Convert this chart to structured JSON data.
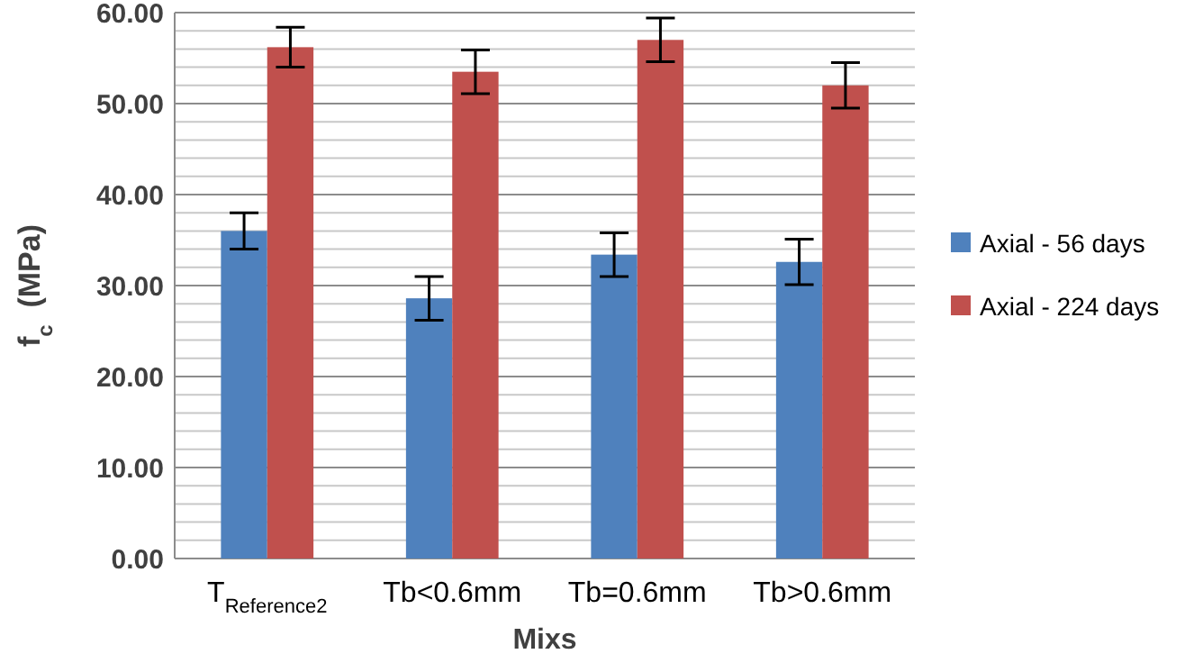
{
  "chart_data": {
    "type": "bar",
    "xlabel": "Mixs",
    "ylabel": "f$_{c}$  (MPa)",
    "categories": [
      "T$_{Reference2}$",
      "Tb<0.6mm",
      "Tb=0.6mm",
      "Tb>0.6mm"
    ],
    "series": [
      {
        "name": "Axial - 56 days",
        "color": "#4f81bd",
        "values": [
          36.0,
          28.6,
          33.4,
          32.6
        ],
        "errors": [
          2.0,
          2.4,
          2.4,
          2.5
        ]
      },
      {
        "name": "Axial - 224 days",
        "color": "#c0504d",
        "values": [
          56.2,
          53.5,
          57.0,
          52.0
        ],
        "errors": [
          2.2,
          2.4,
          2.4,
          2.5
        ]
      }
    ],
    "ylim": [
      0,
      60
    ],
    "yticks": [
      {
        "value": 0,
        "label": "0.00"
      },
      {
        "value": 2,
        "label": null
      },
      {
        "value": 4,
        "label": null
      },
      {
        "value": 6,
        "label": null
      },
      {
        "value": 8,
        "label": null
      },
      {
        "value": 10,
        "label": "10.00"
      },
      {
        "value": 12,
        "label": null
      },
      {
        "value": 14,
        "label": null
      },
      {
        "value": 16,
        "label": null
      },
      {
        "value": 18,
        "label": null
      },
      {
        "value": 20,
        "label": "20.00"
      },
      {
        "value": 22,
        "label": null
      },
      {
        "value": 24,
        "label": null
      },
      {
        "value": 26,
        "label": null
      },
      {
        "value": 28,
        "label": null
      },
      {
        "value": 30,
        "label": "30.00"
      },
      {
        "value": 32,
        "label": null
      },
      {
        "value": 34,
        "label": null
      },
      {
        "value": 36,
        "label": null
      },
      {
        "value": 38,
        "label": null
      },
      {
        "value": 40,
        "label": "40.00"
      },
      {
        "value": 42,
        "label": null
      },
      {
        "value": 44,
        "label": null
      },
      {
        "value": 46,
        "label": null
      },
      {
        "value": 48,
        "label": null
      },
      {
        "value": 50,
        "label": "50.00"
      },
      {
        "value": 52,
        "label": null
      },
      {
        "value": 54,
        "label": null
      },
      {
        "value": 56,
        "label": null
      },
      {
        "value": 58,
        "label": null
      },
      {
        "value": 60,
        "label": "60.00"
      }
    ],
    "grid": "y",
    "legend": "right"
  }
}
